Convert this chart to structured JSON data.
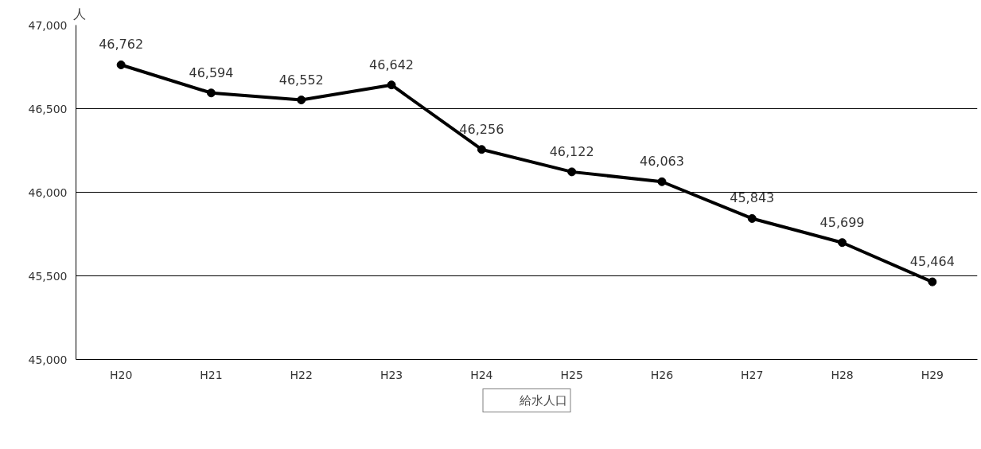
{
  "chart_data": {
    "type": "line",
    "ylabel": "人",
    "categories": [
      "H20",
      "H21",
      "H22",
      "H23",
      "H24",
      "H25",
      "H26",
      "H27",
      "H28",
      "H29"
    ],
    "series": [
      {
        "name": "給水人口",
        "color": "#000000",
        "values": [
          46762,
          46594,
          46552,
          46642,
          46256,
          46122,
          46063,
          45843,
          45699,
          45464
        ],
        "value_labels": [
          "46,762",
          "46,594",
          "46,552",
          "46,642",
          "46,256",
          "46,122",
          "46,063",
          "45,843",
          "45,699",
          "45,464"
        ]
      }
    ],
    "ylim": [
      45000,
      47000
    ],
    "yticks": [
      {
        "value": 45000,
        "label": "45,000"
      },
      {
        "value": 45500,
        "label": "45,500"
      },
      {
        "value": 46000,
        "label": "46,000"
      },
      {
        "value": 46500,
        "label": "46,500"
      },
      {
        "value": 47000,
        "label": "47,000"
      }
    ],
    "grid": "y",
    "legend": "bottom",
    "marker": "circle",
    "line_style": "solid"
  }
}
